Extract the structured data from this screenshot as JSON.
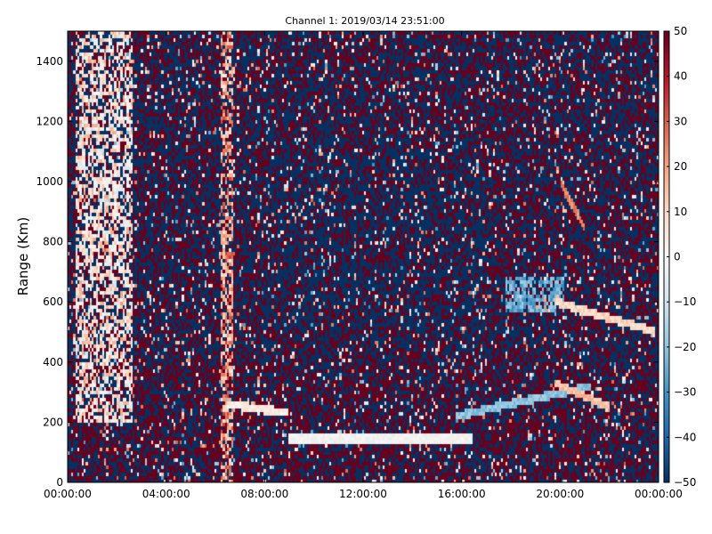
{
  "chart_data": {
    "type": "heatmap",
    "title": "Channel 1: 2019/03/14 23:51:00",
    "xlabel": "",
    "ylabel": "Range (Km)",
    "x_ticks": [
      "00:00:00",
      "04:00:00",
      "08:00:00",
      "12:00:00",
      "16:00:00",
      "20:00:00",
      "00:00:00"
    ],
    "x_range_hours": [
      0,
      24
    ],
    "y_ticks": [
      0,
      200,
      400,
      600,
      800,
      1000,
      1200,
      1400
    ],
    "ylim": [
      0,
      1500
    ],
    "colorbar": {
      "ticks": [
        50,
        40,
        30,
        20,
        10,
        0,
        -10,
        -20,
        -30,
        -40,
        -50
      ],
      "range": [
        -50,
        50
      ],
      "colormap": "red-white-blue (positive red, negative blue)"
    },
    "features": [
      {
        "name": "wide strip",
        "x_hours": [
          0.3,
          2.7
        ],
        "y_km": [
          200,
          1500
        ],
        "value_approx": 5
      },
      {
        "name": "strip",
        "x_hours": [
          6.2,
          6.7
        ],
        "y_km": [
          0,
          1500
        ],
        "value_approx": 20
      },
      {
        "name": "line",
        "x_hours": [
          9.0,
          16.5
        ],
        "y_km": [
          145,
          145
        ],
        "value_approx": 0
      },
      {
        "name": "line",
        "x_hours": [
          6.5,
          9.0
        ],
        "y_km": [
          260,
          230
        ],
        "value_approx": 5
      },
      {
        "name": "line",
        "x_hours": [
          15.8,
          21.3
        ],
        "y_km": [
          220,
          320
        ],
        "value_approx": -20
      },
      {
        "name": "patch",
        "x_hours": [
          17.8,
          20.2
        ],
        "y_km": [
          560,
          680
        ],
        "value_approx": -25
      },
      {
        "name": "line",
        "x_hours": [
          19.8,
          23.9
        ],
        "y_km": [
          600,
          500
        ],
        "value_approx": 10
      },
      {
        "name": "line",
        "x_hours": [
          20.0,
          21.0
        ],
        "y_km": [
          1000,
          850
        ],
        "value_approx": 25
      },
      {
        "name": "line",
        "x_hours": [
          19.8,
          22.0
        ],
        "y_km": [
          330,
          250
        ],
        "value_approx": 15
      }
    ]
  },
  "colors": {
    "red": "#67001f",
    "white": "#f7f7f7",
    "blue": "#053061"
  }
}
